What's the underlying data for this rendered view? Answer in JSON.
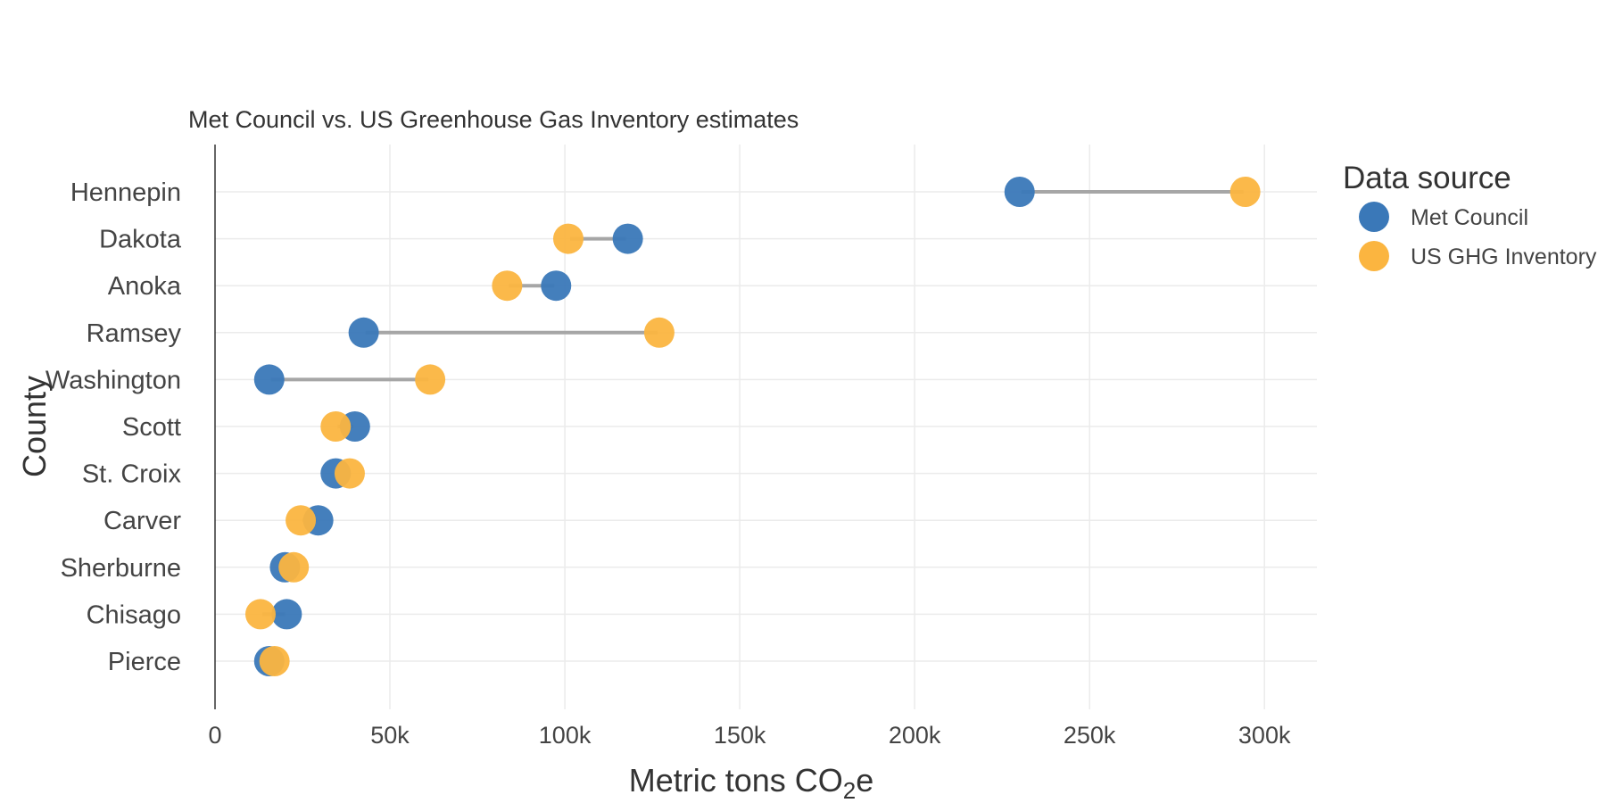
{
  "chart_data": {
    "type": "scatter",
    "subtitle": "Met Council vs. US Greenhouse Gas Inventory estimates",
    "xlabel": "Metric tons CO",
    "xlabel_sub": "2",
    "xlabel_suffix": "e",
    "ylabel": "County",
    "xlim": [
      0,
      315000
    ],
    "x_ticks": [
      {
        "value": 0,
        "label": "0"
      },
      {
        "value": 50000,
        "label": "50k"
      },
      {
        "value": 100000,
        "label": "100k"
      },
      {
        "value": 150000,
        "label": "150k"
      },
      {
        "value": 200000,
        "label": "200k"
      },
      {
        "value": 250000,
        "label": "250k"
      },
      {
        "value": 300000,
        "label": "300k"
      }
    ],
    "categories": [
      "Hennepin",
      "Dakota",
      "Anoka",
      "Ramsey",
      "Washington",
      "Scott",
      "St. Croix",
      "Carver",
      "Sherburne",
      "Chisago",
      "Pierce"
    ],
    "series": [
      {
        "name": "Met Council",
        "color": "#3a78b8",
        "values": [
          230000,
          118000,
          97500,
          42500,
          15500,
          40000,
          34500,
          29500,
          20000,
          20500,
          15500
        ]
      },
      {
        "name": "US GHG Inventory",
        "color": "#fbb540",
        "values": [
          294500,
          101000,
          83500,
          127000,
          61500,
          34500,
          38500,
          24500,
          22500,
          13000,
          17000
        ]
      }
    ],
    "connector_color": "#a6a6a6",
    "grid": true,
    "legend": {
      "title": "Data source",
      "position": "right"
    }
  }
}
